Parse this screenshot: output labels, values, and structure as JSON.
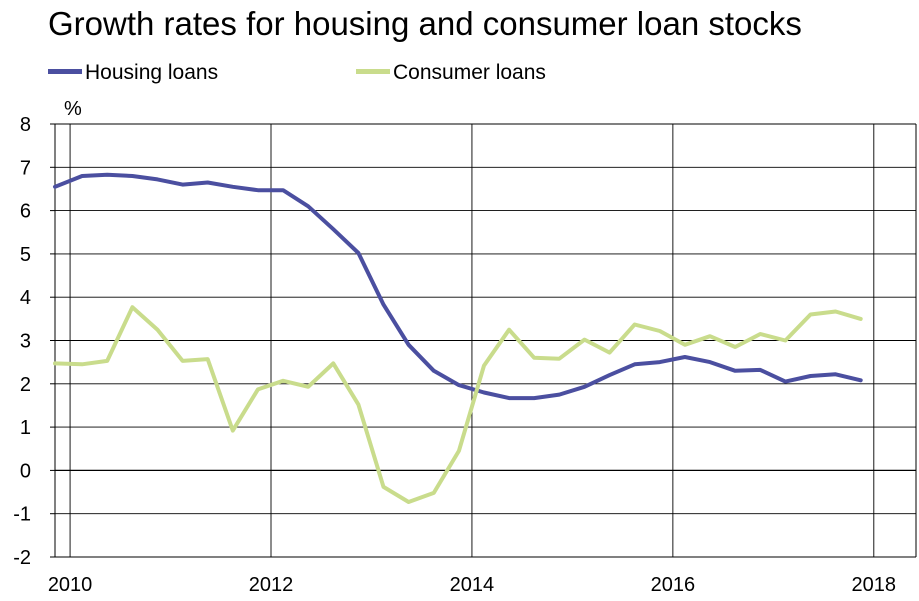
{
  "chart_data": {
    "type": "line",
    "title": "Growth rates for housing and consumer loan stocks",
    "ylabel": "%",
    "xlabel": "",
    "xlim": [
      2009.85,
      2018.42
    ],
    "ylim": [
      -2,
      8
    ],
    "x_ticks": [
      2010,
      2012,
      2014,
      2016,
      2018
    ],
    "y_ticks": [
      -2,
      -1,
      0,
      1,
      2,
      3,
      4,
      5,
      6,
      7,
      8
    ],
    "grid": true,
    "legend": "top-left",
    "series": [
      {
        "name": "Housing loans",
        "color": "#4b4fa0",
        "x": [
          2009.85,
          2010.12,
          2010.37,
          2010.62,
          2010.87,
          2011.12,
          2011.37,
          2011.62,
          2011.87,
          2012.12,
          2012.37,
          2012.62,
          2012.87,
          2013.12,
          2013.37,
          2013.62,
          2013.87,
          2014.12,
          2014.37,
          2014.62,
          2014.87,
          2015.12,
          2015.37,
          2015.62,
          2015.87,
          2016.12,
          2016.37,
          2016.62,
          2016.87,
          2017.12,
          2017.37,
          2017.62,
          2017.87
        ],
        "y": [
          6.55,
          6.8,
          6.83,
          6.8,
          6.72,
          6.6,
          6.65,
          6.55,
          6.47,
          6.47,
          6.1,
          5.57,
          5.02,
          3.83,
          2.9,
          2.3,
          1.97,
          1.8,
          1.67,
          1.67,
          1.75,
          1.93,
          2.2,
          2.45,
          2.5,
          2.62,
          2.5,
          2.3,
          2.32,
          2.05,
          2.18,
          2.22,
          2.08
        ]
      },
      {
        "name": "Consumer loans",
        "color": "#c9dc8c",
        "x": [
          2009.85,
          2010.12,
          2010.37,
          2010.62,
          2010.87,
          2011.12,
          2011.37,
          2011.62,
          2011.87,
          2012.12,
          2012.37,
          2012.62,
          2012.87,
          2013.12,
          2013.37,
          2013.62,
          2013.87,
          2014.12,
          2014.37,
          2014.62,
          2014.87,
          2015.12,
          2015.37,
          2015.62,
          2015.87,
          2016.12,
          2016.37,
          2016.62,
          2016.87,
          2017.12,
          2017.37,
          2017.62,
          2017.87
        ],
        "y": [
          2.47,
          2.45,
          2.53,
          3.77,
          3.25,
          2.53,
          2.57,
          0.92,
          1.87,
          2.07,
          1.93,
          2.47,
          1.52,
          -0.38,
          -0.73,
          -0.52,
          0.45,
          2.42,
          3.25,
          2.6,
          2.58,
          3.02,
          2.72,
          3.37,
          3.22,
          2.9,
          3.1,
          2.85,
          3.15,
          3.0,
          3.6,
          3.67,
          3.5
        ]
      }
    ]
  }
}
